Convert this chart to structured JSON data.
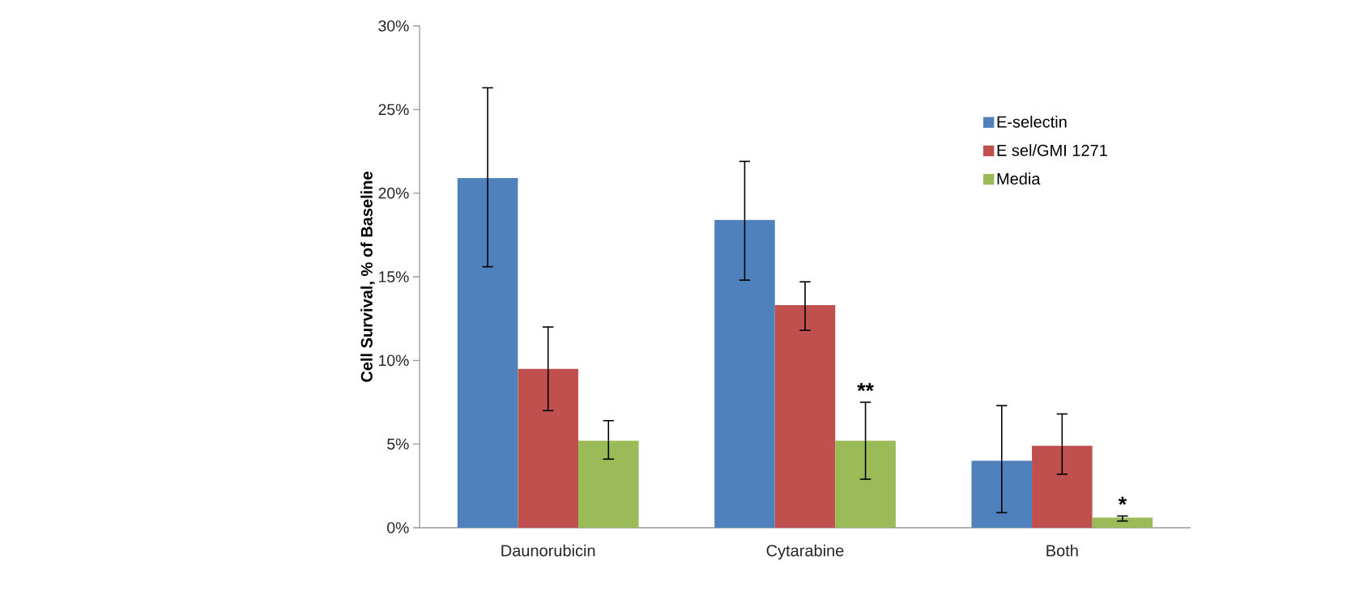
{
  "chart_data": {
    "type": "bar",
    "ylabel": "Cell Survival, % of Baseline",
    "categories": [
      "Daunorubicin",
      "Cytarabine",
      "Both"
    ],
    "series": [
      {
        "name": "E-selectin",
        "color": "#4f81bd",
        "values": [
          20.9,
          18.4,
          4.0
        ],
        "errors": [
          [
            15.6,
            26.3
          ],
          [
            14.8,
            21.9
          ],
          [
            0.9,
            7.3
          ]
        ]
      },
      {
        "name": "E sel/GMI 1271",
        "color": "#c0504d",
        "values": [
          9.5,
          13.3,
          4.9
        ],
        "errors": [
          [
            7.0,
            12.0
          ],
          [
            11.8,
            14.7
          ],
          [
            3.2,
            6.8
          ]
        ]
      },
      {
        "name": "Media",
        "color": "#9bbb59",
        "values": [
          5.2,
          5.2,
          0.6
        ],
        "errors": [
          [
            4.1,
            6.4
          ],
          [
            2.9,
            7.5
          ],
          [
            0.4,
            0.7
          ]
        ]
      }
    ],
    "ylim": [
      0,
      30
    ],
    "yticks": [
      {
        "value": 0,
        "label": "0%"
      },
      {
        "value": 5,
        "label": "5%"
      },
      {
        "value": 10,
        "label": "10%"
      },
      {
        "value": 15,
        "label": "15%"
      },
      {
        "value": 20,
        "label": "20%"
      },
      {
        "value": 25,
        "label": "25%"
      },
      {
        "value": 30,
        "label": "30%"
      }
    ],
    "annotations": [
      "**",
      "*"
    ],
    "legend": "top right"
  }
}
